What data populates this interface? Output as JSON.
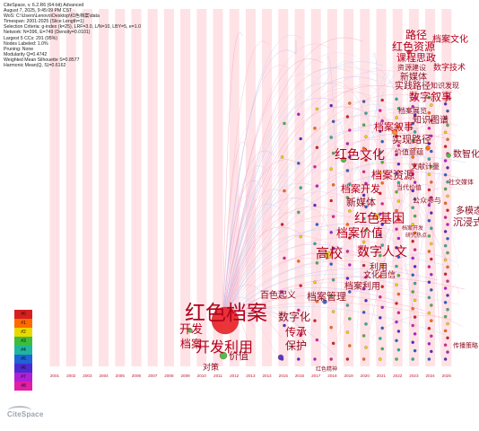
{
  "info_lines": [
    "CiteSpace, v. 6.2.R6 (64-bit) Advanced",
    "August 7, 2025, 9:45:09 PM CST",
    "WoS: C:\\Users\\Lenovo\\Desktop\\红色档案\\data",
    "Timespan: 2001-2025 (Slice Length=1)",
    "Selection Criteria: g-index (k=25), LRF=3.0, L/N=10, LBY=5, e=1.0",
    "Network: N=396, E=749 (Density=0.0101)",
    "Largest 5 CCs: 291 (95%)",
    "Nodes Labeled: 1.0%",
    "Pruning: None",
    "Modularity Q=0.4742",
    "Weighted Mean Silhouette S=0.8577",
    "Harmonic Mean(Q, S)=0.6162"
  ],
  "years": [
    "2001",
    "2002",
    "2003",
    "2004",
    "2005",
    "2006",
    "2007",
    "2008",
    "2009",
    "2010",
    "2011",
    "2012",
    "2013",
    "2014",
    "2015",
    "2016",
    "2017",
    "2018",
    "2019",
    "2020",
    "2021",
    "2022",
    "2023",
    "2024",
    "2025"
  ],
  "clusters": [
    {
      "label": "#0",
      "color": "#d62020"
    },
    {
      "label": "#1",
      "color": "#ff6a00"
    },
    {
      "label": "#2",
      "color": "#e8d800"
    },
    {
      "label": "#3",
      "color": "#3dbd3d"
    },
    {
      "label": "#4",
      "color": "#1fb59e"
    },
    {
      "label": "#5",
      "color": "#1e64d6"
    },
    {
      "label": "#6",
      "color": "#4b2bd1"
    },
    {
      "label": "#7",
      "color": "#b01fd6"
    },
    {
      "label": "#8",
      "color": "#e01ea6"
    }
  ],
  "keywords": [
    {
      "text": "路径",
      "size": 12
    },
    {
      "text": "档案文化",
      "size": 10
    },
    {
      "text": "红色资源",
      "size": 12
    },
    {
      "text": "课程思政",
      "size": 11
    },
    {
      "text": "资源建设",
      "size": 8
    },
    {
      "text": "数字技术",
      "size": 9
    },
    {
      "text": "新媒体",
      "size": 10
    },
    {
      "text": "实践路径",
      "size": 10
    },
    {
      "text": "知识发现",
      "size": 8
    },
    {
      "text": "数字叙事",
      "size": 12
    },
    {
      "text": "档案展览",
      "size": 8
    },
    {
      "text": "知识图谱",
      "size": 10
    },
    {
      "text": "档案叙事",
      "size": 11
    },
    {
      "text": "实现路径",
      "size": 11
    },
    {
      "text": "价值意蕴",
      "size": 8
    },
    {
      "text": "数智化",
      "size": 10
    },
    {
      "text": "红色文化",
      "size": 14
    },
    {
      "text": "文献计量",
      "size": 8
    },
    {
      "text": "档案资源",
      "size": 12
    },
    {
      "text": "当代价值",
      "size": 7
    },
    {
      "text": "社交媒体",
      "size": 7
    },
    {
      "text": "档案开发",
      "size": 11
    },
    {
      "text": "公众参与",
      "size": 8
    },
    {
      "text": "多模态",
      "size": 10
    },
    {
      "text": "新媒体",
      "size": 11
    },
    {
      "text": "红色基因",
      "size": 14
    },
    {
      "text": "沉浸式",
      "size": 11
    },
    {
      "text": "档案价值",
      "size": 13
    },
    {
      "text": "数字人文",
      "size": 14
    },
    {
      "text": "高校",
      "size": 15
    },
    {
      "text": "利用",
      "size": 10
    },
    {
      "text": "文化自信",
      "size": 9
    },
    {
      "text": "档案利用",
      "size": 10
    },
    {
      "text": "百色起义",
      "size": 10
    },
    {
      "text": "档案管理",
      "size": 11
    },
    {
      "text": "红色档案",
      "size": 23
    },
    {
      "text": "数字化",
      "size": 12
    },
    {
      "text": "开发",
      "size": 13
    },
    {
      "text": "传承",
      "size": 12
    },
    {
      "text": "档案",
      "size": 12
    },
    {
      "text": "开发利用",
      "size": 16
    },
    {
      "text": "保护",
      "size": 12
    },
    {
      "text": "价值",
      "size": 11
    },
    {
      "text": "对策",
      "size": 9
    },
    {
      "text": "传播策略",
      "size": 7
    },
    {
      "text": "红色精神",
      "size": 6
    },
    {
      "text": "研究热点",
      "size": 6
    },
    {
      "text": "档案开发",
      "size": 6
    }
  ],
  "logo": "CiteSpace"
}
